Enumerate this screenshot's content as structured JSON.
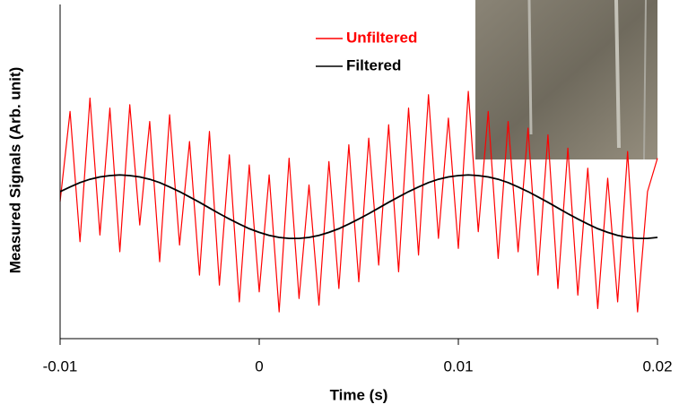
{
  "chart_data": {
    "type": "line",
    "x_label": "Time (s)",
    "y_label": "Measured Signals (Arb. unit)",
    "x": [
      -0.01,
      -0.0095,
      -0.009,
      -0.0085,
      -0.008,
      -0.0075,
      -0.007,
      -0.0065,
      -0.006,
      -0.0055,
      -0.005,
      -0.0045,
      -0.004,
      -0.0035,
      -0.003,
      -0.0025,
      -0.002,
      -0.0015,
      -0.001,
      -0.0005,
      0,
      0.0005,
      0.001,
      0.0015,
      0.002,
      0.0025,
      0.003,
      0.0035,
      0.004,
      0.0045,
      0.005,
      0.0055,
      0.006,
      0.0065,
      0.007,
      0.0075,
      0.008,
      0.0085,
      0.009,
      0.0095,
      0.01,
      0.0105,
      0.011,
      0.0115,
      0.012,
      0.0125,
      0.013,
      0.0135,
      0.014,
      0.0145,
      0.015,
      0.0155,
      0.016,
      0.0165,
      0.017,
      0.0175,
      0.018,
      0.0185,
      0.019,
      0.0195,
      0.02
    ],
    "xlim": [
      -0.01,
      0.02
    ],
    "xticks": [
      -0.01,
      0,
      0.01,
      0.02
    ],
    "ylim": [
      0,
      10
    ],
    "series": [
      {
        "name": "Unfiltered",
        "color": "#ff0000",
        "values": [
          4.1,
          6.8,
          2.9,
          7.2,
          3.1,
          6.9,
          2.6,
          7.0,
          3.4,
          6.5,
          2.3,
          6.7,
          2.8,
          5.9,
          1.9,
          6.2,
          1.6,
          5.5,
          1.1,
          5.2,
          1.4,
          4.9,
          0.8,
          5.4,
          1.2,
          4.6,
          1.0,
          5.3,
          1.5,
          5.8,
          1.7,
          6.0,
          2.2,
          6.4,
          2.0,
          6.9,
          2.5,
          7.3,
          3.0,
          6.6,
          2.7,
          7.4,
          3.2,
          6.8,
          2.4,
          6.5,
          2.6,
          6.3,
          1.9,
          6.1,
          1.5,
          5.7,
          1.3,
          5.1,
          0.9,
          4.8,
          1.1,
          5.6,
          0.8,
          4.4,
          5.4
        ]
      },
      {
        "name": "Filtered",
        "color": "#000000",
        "values": [
          4.4,
          4.54,
          4.67,
          4.77,
          4.84,
          4.88,
          4.9,
          4.88,
          4.84,
          4.77,
          4.67,
          4.54,
          4.4,
          4.24,
          4.08,
          3.91,
          3.74,
          3.58,
          3.43,
          3.29,
          3.18,
          3.09,
          3.03,
          3.0,
          3.0,
          3.03,
          3.09,
          3.18,
          3.29,
          3.43,
          3.58,
          3.74,
          3.91,
          4.08,
          4.24,
          4.4,
          4.54,
          4.67,
          4.77,
          4.84,
          4.88,
          4.9,
          4.88,
          4.84,
          4.77,
          4.67,
          4.54,
          4.4,
          4.24,
          4.08,
          3.91,
          3.74,
          3.58,
          3.43,
          3.29,
          3.18,
          3.09,
          3.03,
          3.0,
          3.0,
          3.03
        ]
      }
    ]
  }
}
